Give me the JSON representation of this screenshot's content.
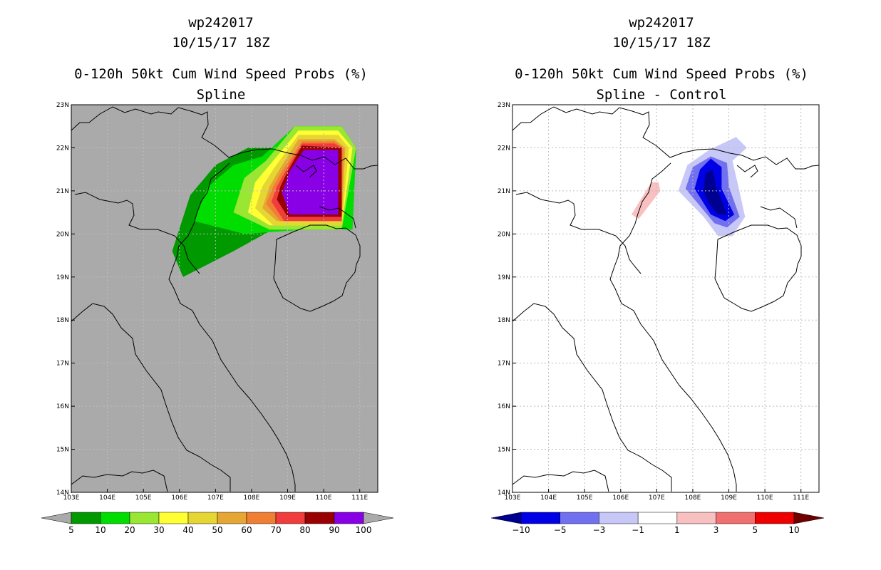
{
  "chart_data": [
    {
      "type": "heatmap",
      "storm_id": "wp242017",
      "datetime": "10/15/17 18Z",
      "title": "0-120h 50kt Cum Wind Speed Probs (%)",
      "subtitle": "Spline",
      "background": "#aaaaaa",
      "xlim": [
        103,
        111.5
      ],
      "ylim": [
        14,
        23
      ],
      "xticks": [
        "103E",
        "104E",
        "105E",
        "106E",
        "107E",
        "108E",
        "109E",
        "110E",
        "111E"
      ],
      "yticks": [
        "14N",
        "15N",
        "16N",
        "17N",
        "18N",
        "19N",
        "20N",
        "21N",
        "22N",
        "23N"
      ],
      "colorbar": {
        "labels": [
          "5",
          "10",
          "20",
          "30",
          "40",
          "50",
          "60",
          "70",
          "80",
          "90",
          "100"
        ],
        "colors": [
          "#009900",
          "#00dd00",
          "#99e633",
          "#ffff33",
          "#e6d633",
          "#e6a633",
          "#f07e33",
          "#f03c3c",
          "#990000",
          "#8a00e6"
        ],
        "arrow_left": "#aaaaaa",
        "arrow_right": "#aaaaaa"
      },
      "contours": [
        {
          "level": 5,
          "color": "#009900",
          "points": [
            [
              105.8,
              19.6
            ],
            [
              106.1,
              19.0
            ],
            [
              107.5,
              19.6
            ],
            [
              108.8,
              20.2
            ],
            [
              110.8,
              20.2
            ],
            [
              110.9,
              22.0
            ],
            [
              110.5,
              22.5
            ],
            [
              109.2,
              22.5
            ],
            [
              108.7,
              22.0
            ],
            [
              107.9,
              22.0
            ],
            [
              107.0,
              21.6
            ],
            [
              106.3,
              20.9
            ]
          ]
        },
        {
          "level": 10,
          "color": "#00dd00",
          "points": [
            [
              106.4,
              20.3
            ],
            [
              107.8,
              20.0
            ],
            [
              109.5,
              20.1
            ],
            [
              110.8,
              20.1
            ],
            [
              110.9,
              22.0
            ],
            [
              110.5,
              22.5
            ],
            [
              109.2,
              22.5
            ],
            [
              108.3,
              21.8
            ],
            [
              107.5,
              21.6
            ],
            [
              106.8,
              21.1
            ]
          ]
        },
        {
          "level": 20,
          "color": "#99e633",
          "points": [
            [
              107.5,
              20.5
            ],
            [
              108.5,
              20.1
            ],
            [
              110.5,
              20.1
            ],
            [
              110.9,
              22.0
            ],
            [
              110.5,
              22.5
            ],
            [
              109.2,
              22.5
            ],
            [
              108.4,
              21.7
            ],
            [
              107.8,
              21.3
            ]
          ]
        },
        {
          "level": 30,
          "color": "#ffff33",
          "points": [
            [
              107.9,
              20.5
            ],
            [
              108.5,
              20.2
            ],
            [
              110.5,
              20.2
            ],
            [
              110.8,
              22.0
            ],
            [
              110.4,
              22.4
            ],
            [
              109.3,
              22.4
            ],
            [
              108.5,
              21.6
            ],
            [
              108.1,
              21.2
            ]
          ]
        },
        {
          "level": 40,
          "color": "#e6d633",
          "points": [
            [
              108.1,
              20.6
            ],
            [
              108.6,
              20.2
            ],
            [
              110.5,
              20.2
            ],
            [
              110.7,
              22.0
            ],
            [
              110.4,
              22.3
            ],
            [
              109.3,
              22.3
            ],
            [
              108.6,
              21.5
            ],
            [
              108.3,
              21.1
            ]
          ]
        },
        {
          "level": 50,
          "color": "#e6a633",
          "points": [
            [
              108.3,
              20.6
            ],
            [
              108.7,
              20.3
            ],
            [
              110.5,
              20.3
            ],
            [
              110.6,
              22.0
            ],
            [
              110.3,
              22.2
            ],
            [
              109.3,
              22.2
            ],
            [
              108.7,
              21.4
            ],
            [
              108.5,
              21.1
            ]
          ]
        },
        {
          "level": 60,
          "color": "#f07e33",
          "points": [
            [
              108.4,
              20.7
            ],
            [
              108.8,
              20.3
            ],
            [
              110.5,
              20.3
            ],
            [
              110.55,
              22.0
            ],
            [
              110.3,
              22.15
            ],
            [
              109.4,
              22.15
            ],
            [
              108.8,
              21.4
            ],
            [
              108.6,
              21.1
            ]
          ]
        },
        {
          "level": 70,
          "color": "#f03c3c",
          "points": [
            [
              108.55,
              20.75
            ],
            [
              108.9,
              20.3
            ],
            [
              110.5,
              20.3
            ],
            [
              110.5,
              22.0
            ],
            [
              110.3,
              22.1
            ],
            [
              109.4,
              22.1
            ],
            [
              108.9,
              21.4
            ],
            [
              108.7,
              21.1
            ]
          ]
        },
        {
          "level": 80,
          "color": "#990000",
          "points": [
            [
              108.7,
              20.8
            ],
            [
              109.0,
              20.4
            ],
            [
              110.5,
              20.4
            ],
            [
              110.5,
              22.0
            ],
            [
              109.4,
              22.05
            ],
            [
              109.0,
              21.45
            ],
            [
              108.8,
              21.1
            ]
          ]
        },
        {
          "level": 90,
          "color": "#8a00e6",
          "points": [
            [
              108.85,
              20.95
            ],
            [
              109.05,
              20.45
            ],
            [
              110.4,
              20.45
            ],
            [
              110.4,
              21.95
            ],
            [
              109.45,
              21.95
            ],
            [
              109.05,
              21.45
            ]
          ]
        }
      ]
    },
    {
      "type": "heatmap",
      "storm_id": "wp242017",
      "datetime": "10/15/17 18Z",
      "title": "0-120h 50kt Cum Wind Speed Probs (%)",
      "subtitle": "Spline - Control",
      "background": "#ffffff",
      "xlim": [
        103,
        111.5
      ],
      "ylim": [
        14,
        23
      ],
      "xticks": [
        "103E",
        "104E",
        "105E",
        "106E",
        "107E",
        "108E",
        "109E",
        "110E",
        "111E"
      ],
      "yticks": [
        "14N",
        "15N",
        "16N",
        "17N",
        "18N",
        "19N",
        "20N",
        "21N",
        "22N",
        "23N"
      ],
      "colorbar": {
        "labels": [
          "−10",
          "−5",
          "−3",
          "−1",
          "1",
          "3",
          "5",
          "10"
        ],
        "colors": [
          "#0000e6",
          "#7070f0",
          "#c8c8f8",
          "#ffffff",
          "#f8c0c0",
          "#f07070",
          "#ee0000"
        ],
        "arrow_left": "#000090",
        "arrow_right": "#700000"
      },
      "contours": [
        {
          "level": 1,
          "color": "#f8c0c0",
          "points": [
            [
              106.3,
              20.45
            ],
            [
              106.5,
              20.35
            ],
            [
              107.1,
              21.0
            ],
            [
              107.05,
              21.2
            ],
            [
              106.85,
              21.2
            ]
          ]
        },
        {
          "level": -1,
          "color": "#c8c8f8",
          "points": [
            [
              107.6,
              21.0
            ],
            [
              107.85,
              21.6
            ],
            [
              108.45,
              21.95
            ],
            [
              109.2,
              22.25
            ],
            [
              109.5,
              22.0
            ],
            [
              109.1,
              21.7
            ],
            [
              109.25,
              21.15
            ],
            [
              109.45,
              20.4
            ],
            [
              109.1,
              19.95
            ],
            [
              108.7,
              19.95
            ],
            [
              108.3,
              20.4
            ]
          ]
        },
        {
          "level": -3,
          "color": "#7070f0",
          "points": [
            [
              107.8,
              21.05
            ],
            [
              108.0,
              21.55
            ],
            [
              108.5,
              21.8
            ],
            [
              108.95,
              21.65
            ],
            [
              109.0,
              21.1
            ],
            [
              109.3,
              20.4
            ],
            [
              108.95,
              20.15
            ],
            [
              108.6,
              20.25
            ]
          ]
        },
        {
          "level": -5,
          "color": "#0000e6",
          "points": [
            [
              108.05,
              21.05
            ],
            [
              108.2,
              21.5
            ],
            [
              108.5,
              21.75
            ],
            [
              108.8,
              21.55
            ],
            [
              108.8,
              21.05
            ],
            [
              109.15,
              20.45
            ],
            [
              108.9,
              20.3
            ],
            [
              108.5,
              20.45
            ]
          ]
        },
        {
          "level": -10,
          "color": "#000090",
          "points": [
            [
              108.3,
              21.0
            ],
            [
              108.35,
              21.4
            ],
            [
              108.55,
              21.5
            ],
            [
              108.65,
              21.1
            ],
            [
              108.95,
              20.45
            ],
            [
              108.7,
              20.45
            ],
            [
              108.45,
              20.7
            ]
          ]
        }
      ]
    }
  ]
}
